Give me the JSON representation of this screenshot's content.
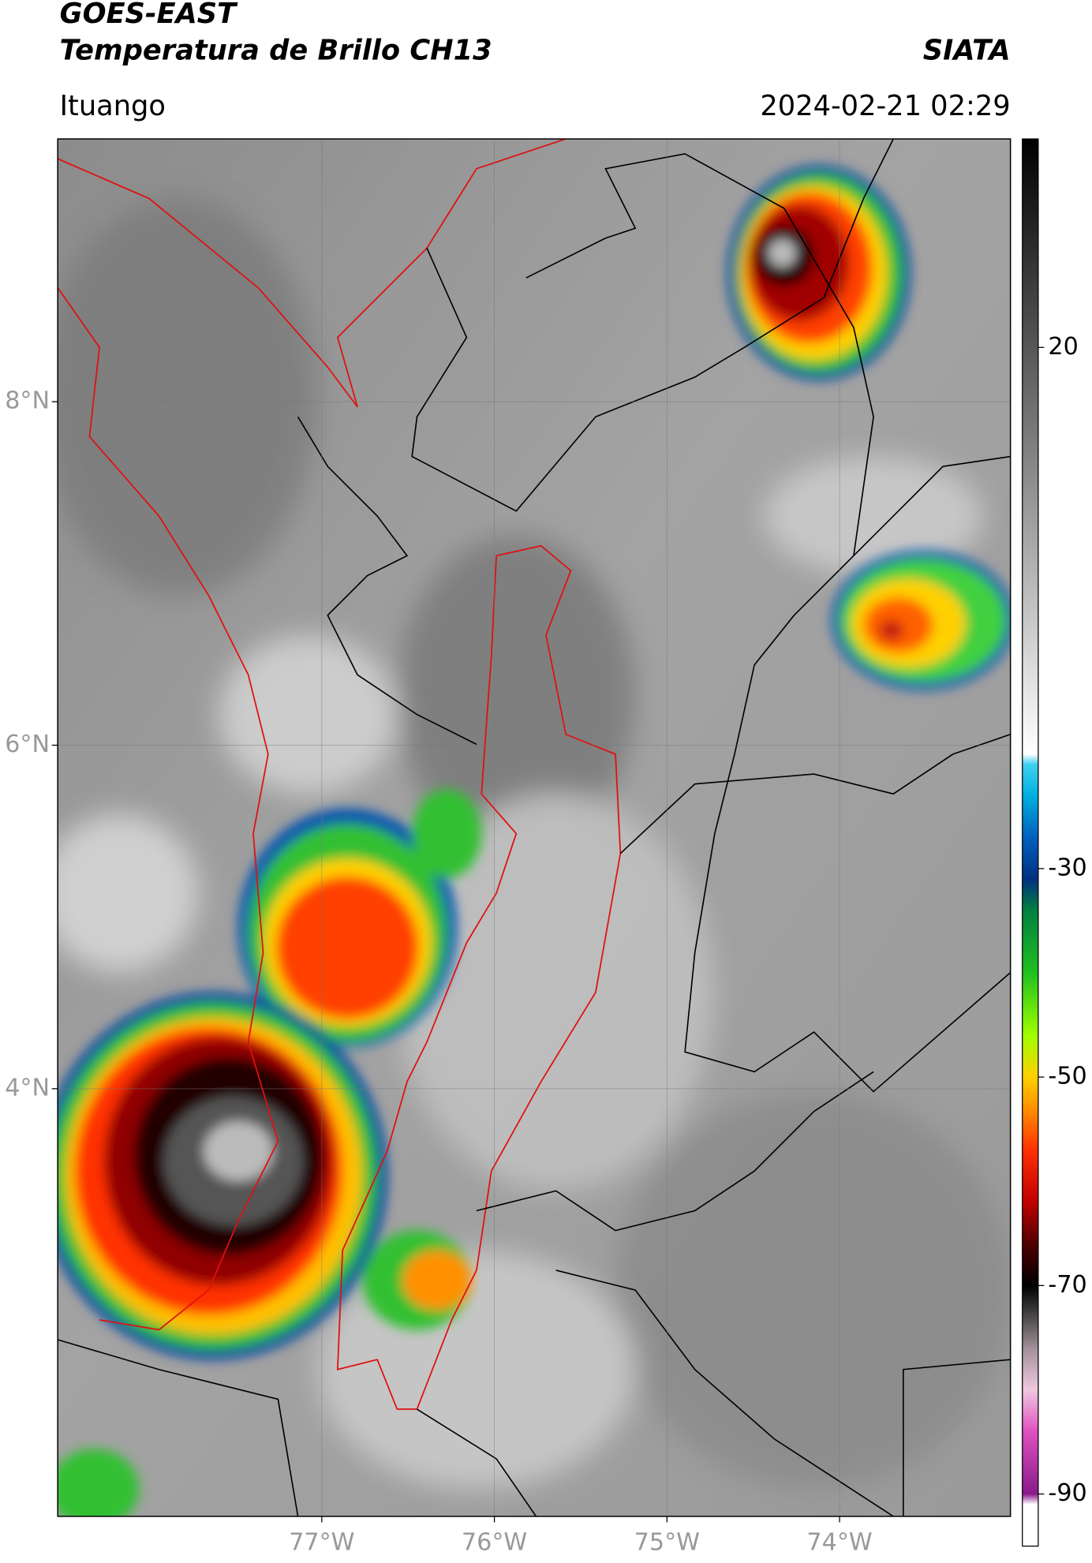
{
  "header": {
    "title": "GOES-EAST",
    "subtitle": "Temperatura de Brillo CH13",
    "source": "SIATA",
    "location": "Ituango",
    "datetime": "2024-02-21 02:29"
  },
  "map": {
    "xlim": [
      -78.53,
      -73.01
    ],
    "ylim": [
      1.51,
      9.53
    ],
    "xticks": [
      {
        "value": -77,
        "label": "77°W"
      },
      {
        "value": -76,
        "label": "76°W"
      },
      {
        "value": -75,
        "label": "75°W"
      },
      {
        "value": -74,
        "label": "74°W"
      }
    ],
    "yticks": [
      {
        "value": 8,
        "label": "8°N"
      },
      {
        "value": 6,
        "label": "6°N"
      },
      {
        "value": 4,
        "label": "4°N"
      }
    ],
    "grid": true
  },
  "colorbar": {
    "lim": [
      -95,
      40
    ],
    "ticks": [
      20,
      -30,
      -50,
      -70,
      -90
    ],
    "stops": [
      {
        "value": -95,
        "color": "#ffffff"
      },
      {
        "value": -91,
        "color": "#ffffff"
      },
      {
        "value": -90,
        "color": "#8a1a8a"
      },
      {
        "value": -84,
        "color": "#e050c0"
      },
      {
        "value": -80,
        "color": "#f0c8e0"
      },
      {
        "value": -76,
        "color": "#a09098"
      },
      {
        "value": -72,
        "color": "#303030"
      },
      {
        "value": -70,
        "color": "#000000"
      },
      {
        "value": -66,
        "color": "#500000"
      },
      {
        "value": -62,
        "color": "#c00000"
      },
      {
        "value": -57,
        "color": "#ff3000"
      },
      {
        "value": -53,
        "color": "#ff9000"
      },
      {
        "value": -50,
        "color": "#ffd000"
      },
      {
        "value": -46,
        "color": "#a0ff00"
      },
      {
        "value": -40,
        "color": "#20c020"
      },
      {
        "value": -34,
        "color": "#008040"
      },
      {
        "value": -31,
        "color": "#003080"
      },
      {
        "value": -27,
        "color": "#0060c0"
      },
      {
        "value": -23,
        "color": "#00b0e0"
      },
      {
        "value": -20,
        "color": "#40d0f0"
      },
      {
        "value": -19,
        "color": "#ffffff"
      },
      {
        "value": 40,
        "color": "#000000"
      }
    ]
  }
}
